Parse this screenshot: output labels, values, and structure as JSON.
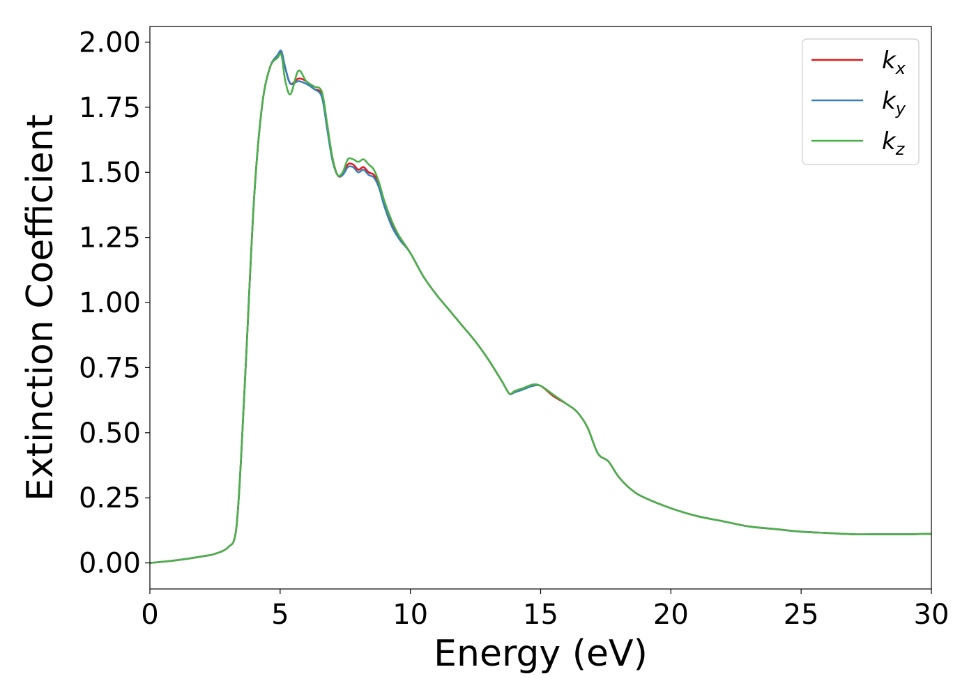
{
  "chart_data": {
    "type": "line",
    "title": "",
    "xlabel": "Energy (eV)",
    "ylabel": "Extinction Coefficient",
    "xlim": [
      0,
      30
    ],
    "ylim": [
      -0.1,
      2.06
    ],
    "xticks": [
      "0",
      "5",
      "10",
      "15",
      "20",
      "25",
      "30"
    ],
    "yticks": [
      "0.00",
      "0.25",
      "0.50",
      "0.75",
      "1.00",
      "1.25",
      "1.50",
      "1.75",
      "2.00"
    ],
    "grid": false,
    "legend_position": "top-right",
    "series": [
      {
        "name": "k_x",
        "label_base": "k",
        "label_sub": "x",
        "color": "#e41a1c",
        "x": [
          0,
          1,
          2,
          2.5,
          3,
          3.3,
          3.5,
          3.7,
          4,
          4.3,
          4.6,
          4.9,
          5.05,
          5.2,
          5.4,
          5.7,
          6.0,
          6.3,
          6.6,
          6.8,
          7.0,
          7.2,
          7.4,
          7.6,
          7.8,
          8.0,
          8.2,
          8.4,
          8.6,
          8.8,
          9.0,
          9.3,
          9.6,
          10.0,
          10.5,
          11.0,
          11.5,
          12.0,
          12.5,
          13.0,
          13.5,
          13.8,
          14.0,
          14.3,
          14.7,
          15.0,
          15.5,
          16.0,
          16.4,
          16.8,
          17.2,
          17.6,
          18.0,
          18.5,
          19.0,
          20.0,
          21.0,
          22.0,
          23.0,
          24.0,
          25.0,
          26.0,
          27.0,
          28.0,
          29.0,
          30.0
        ],
        "y": [
          0.0,
          0.01,
          0.025,
          0.035,
          0.06,
          0.12,
          0.4,
          0.8,
          1.4,
          1.75,
          1.9,
          1.95,
          1.96,
          1.9,
          1.84,
          1.86,
          1.85,
          1.82,
          1.8,
          1.68,
          1.56,
          1.49,
          1.49,
          1.53,
          1.53,
          1.51,
          1.52,
          1.5,
          1.49,
          1.45,
          1.38,
          1.3,
          1.25,
          1.19,
          1.1,
          1.03,
          0.97,
          0.91,
          0.85,
          0.78,
          0.7,
          0.65,
          0.66,
          0.67,
          0.68,
          0.68,
          0.64,
          0.61,
          0.58,
          0.52,
          0.42,
          0.39,
          0.33,
          0.28,
          0.25,
          0.21,
          0.18,
          0.16,
          0.14,
          0.13,
          0.12,
          0.115,
          0.11,
          0.11,
          0.11,
          0.112
        ]
      },
      {
        "name": "k_y",
        "label_base": "k",
        "label_sub": "y",
        "color": "#377eb8",
        "x": [
          0,
          1,
          2,
          2.5,
          3,
          3.3,
          3.5,
          3.7,
          4,
          4.3,
          4.6,
          4.9,
          5.05,
          5.2,
          5.4,
          5.7,
          6.0,
          6.3,
          6.6,
          6.8,
          7.0,
          7.2,
          7.4,
          7.6,
          7.8,
          8.0,
          8.2,
          8.4,
          8.6,
          8.8,
          9.0,
          9.3,
          9.6,
          10.0,
          10.5,
          11.0,
          11.5,
          12.0,
          12.5,
          13.0,
          13.5,
          13.8,
          14.0,
          14.3,
          14.7,
          15.0,
          15.5,
          16.0,
          16.4,
          16.8,
          17.2,
          17.6,
          18.0,
          18.5,
          19.0,
          20.0,
          21.0,
          22.0,
          23.0,
          24.0,
          25.0,
          26.0,
          27.0,
          28.0,
          29.0,
          30.0
        ],
        "y": [
          0.0,
          0.01,
          0.025,
          0.035,
          0.06,
          0.12,
          0.4,
          0.8,
          1.4,
          1.75,
          1.9,
          1.95,
          1.965,
          1.9,
          1.84,
          1.85,
          1.84,
          1.82,
          1.79,
          1.67,
          1.55,
          1.49,
          1.49,
          1.52,
          1.52,
          1.5,
          1.51,
          1.49,
          1.48,
          1.44,
          1.37,
          1.29,
          1.24,
          1.19,
          1.1,
          1.03,
          0.97,
          0.91,
          0.85,
          0.78,
          0.7,
          0.65,
          0.655,
          0.665,
          0.68,
          0.68,
          0.645,
          0.61,
          0.58,
          0.52,
          0.42,
          0.39,
          0.33,
          0.28,
          0.25,
          0.21,
          0.18,
          0.16,
          0.14,
          0.13,
          0.12,
          0.115,
          0.11,
          0.11,
          0.11,
          0.112
        ]
      },
      {
        "name": "k_z",
        "label_base": "k",
        "label_sub": "z",
        "color": "#4daf4a",
        "x": [
          0,
          1,
          2,
          2.5,
          3,
          3.3,
          3.5,
          3.7,
          4,
          4.3,
          4.6,
          4.9,
          5.05,
          5.2,
          5.4,
          5.7,
          6.0,
          6.3,
          6.6,
          6.8,
          7.0,
          7.2,
          7.4,
          7.6,
          7.8,
          8.0,
          8.2,
          8.4,
          8.6,
          8.8,
          9.0,
          9.3,
          9.6,
          10.0,
          10.5,
          11.0,
          11.5,
          12.0,
          12.5,
          13.0,
          13.5,
          13.8,
          14.0,
          14.3,
          14.7,
          15.0,
          15.5,
          16.0,
          16.4,
          16.8,
          17.2,
          17.6,
          18.0,
          18.5,
          19.0,
          20.0,
          21.0,
          22.0,
          23.0,
          24.0,
          25.0,
          26.0,
          27.0,
          28.0,
          29.0,
          30.0
        ],
        "y": [
          0.0,
          0.01,
          0.025,
          0.035,
          0.06,
          0.12,
          0.4,
          0.8,
          1.4,
          1.75,
          1.9,
          1.94,
          1.95,
          1.85,
          1.8,
          1.89,
          1.85,
          1.83,
          1.81,
          1.69,
          1.56,
          1.49,
          1.5,
          1.55,
          1.55,
          1.54,
          1.55,
          1.53,
          1.51,
          1.46,
          1.39,
          1.31,
          1.25,
          1.19,
          1.1,
          1.03,
          0.97,
          0.91,
          0.85,
          0.78,
          0.7,
          0.65,
          0.66,
          0.67,
          0.685,
          0.68,
          0.645,
          0.61,
          0.58,
          0.52,
          0.42,
          0.39,
          0.33,
          0.28,
          0.25,
          0.21,
          0.18,
          0.16,
          0.14,
          0.13,
          0.12,
          0.115,
          0.11,
          0.11,
          0.11,
          0.112
        ]
      }
    ]
  }
}
